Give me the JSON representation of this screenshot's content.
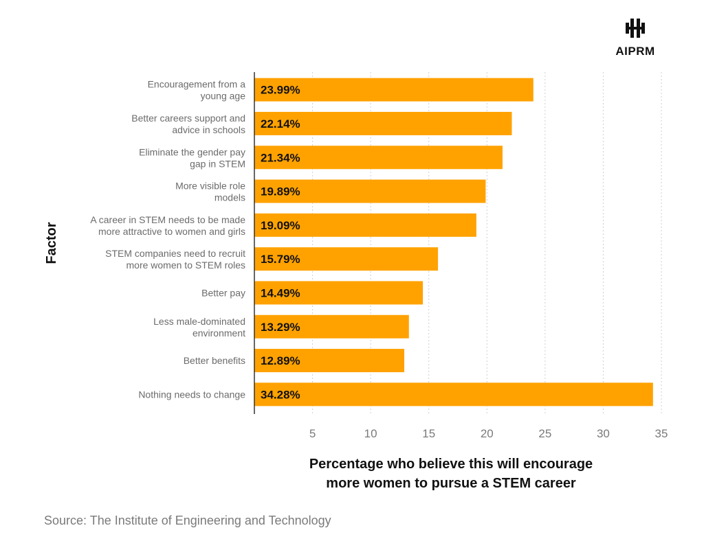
{
  "brand": {
    "name": "AIPRM",
    "icon": "aiprm-logo-icon"
  },
  "source": "Source: The Institute of Engineering and Technology",
  "chart_data": {
    "type": "bar",
    "orientation": "horizontal",
    "title": "",
    "ylabel": "Factor",
    "xlabel_lines": [
      "Percentage who believe this will encourage",
      "more women to pursue a STEM career"
    ],
    "xlim": [
      0,
      35
    ],
    "xticks": [
      5,
      10,
      15,
      20,
      25,
      30,
      35
    ],
    "grid": true,
    "bar_color": "#ffa200",
    "categories": [
      [
        "Encouragement from a",
        "young age"
      ],
      [
        "Better careers support and",
        "advice in schools"
      ],
      [
        "Eliminate the gender pay",
        "gap in STEM"
      ],
      [
        "More visible role",
        "models"
      ],
      [
        "A career in STEM needs to be made",
        "more attractive to women and girls"
      ],
      [
        "STEM companies need to recruit",
        "more women to STEM roles"
      ],
      [
        "Better pay"
      ],
      [
        "Less male-dominated",
        "environment"
      ],
      [
        "Better benefits"
      ],
      [
        "Nothing needs to change"
      ]
    ],
    "values": [
      23.99,
      22.14,
      21.34,
      19.89,
      19.09,
      15.79,
      14.49,
      13.29,
      12.89,
      34.28
    ],
    "value_labels": [
      "23.99%",
      "22.14%",
      "21.34%",
      "19.89%",
      "19.09%",
      "15.79%",
      "14.49%",
      "13.29%",
      "12.89%",
      "34.28%"
    ]
  }
}
